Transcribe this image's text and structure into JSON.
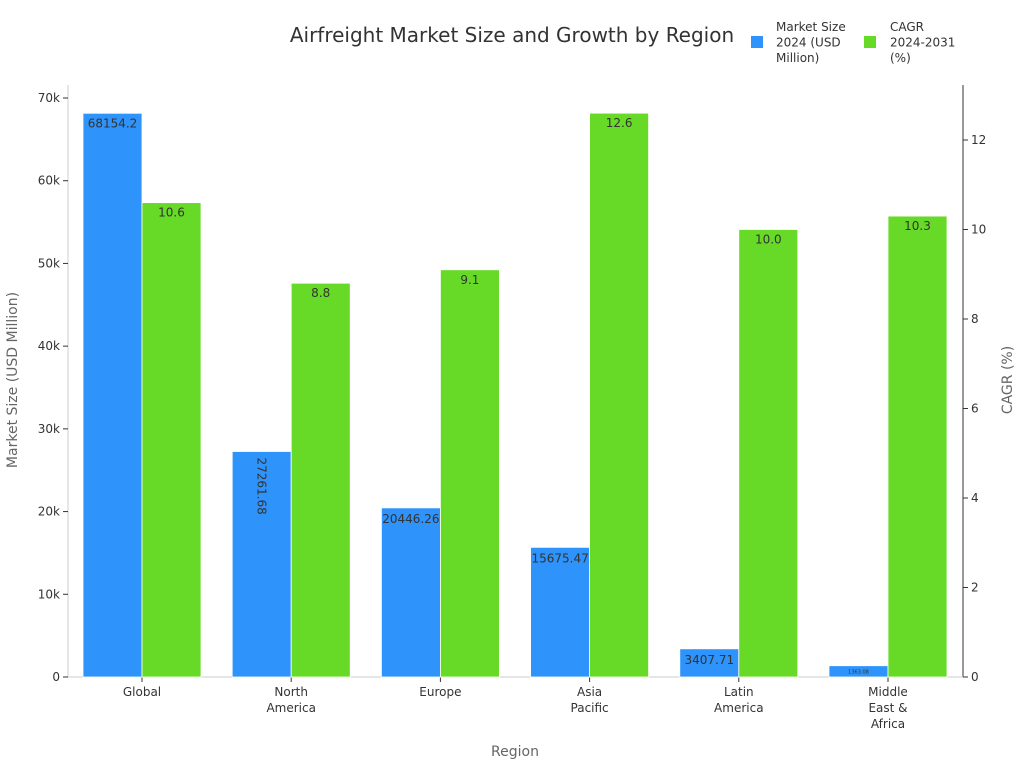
{
  "chart_data": {
    "type": "bar",
    "title": "Airfreight Market Size and Growth by Region",
    "xlabel": "Region",
    "ylabel_left": "Market Size (USD Million)",
    "ylabel_right": "CAGR (%)",
    "categories": [
      [
        "Global"
      ],
      [
        "North",
        "America"
      ],
      [
        "Europe"
      ],
      [
        "Asia",
        "Pacific"
      ],
      [
        "Latin",
        "America"
      ],
      [
        "Middle",
        "East &",
        "Africa"
      ]
    ],
    "series": [
      {
        "name": [
          "Market Size",
          "2024 (USD",
          "Million)"
        ],
        "axis": "left",
        "color": "#2e93fa",
        "values": [
          68154.2,
          27261.68,
          20446.26,
          15675.47,
          3407.71,
          1363.08
        ],
        "labels": [
          "68154.2",
          "27261.68",
          "20446.26",
          "15675.47",
          "3407.71",
          "1363.08"
        ]
      },
      {
        "name": [
          "CAGR",
          "2024-2031",
          "(%)"
        ],
        "axis": "right",
        "color": "#66da26",
        "values": [
          10.6,
          8.8,
          9.1,
          12.6,
          10.0,
          10.3
        ],
        "labels": [
          "10.6",
          "8.8",
          "9.1",
          "12.6",
          "10.0",
          "10.3"
        ]
      }
    ],
    "ylim_left": [
      0,
      72000
    ],
    "yticks_left": [
      {
        "v": 0,
        "t": "0"
      },
      {
        "v": 10000,
        "t": "10k"
      },
      {
        "v": 20000,
        "t": "20k"
      },
      {
        "v": 30000,
        "t": "30k"
      },
      {
        "v": 40000,
        "t": "40k"
      },
      {
        "v": 50000,
        "t": "50k"
      },
      {
        "v": 60000,
        "t": "60k"
      },
      {
        "v": 70000,
        "t": "70k"
      }
    ],
    "ylim_right": [
      0,
      13.23
    ],
    "yticks_right": [
      {
        "v": 0,
        "t": "0"
      },
      {
        "v": 2,
        "t": "2"
      },
      {
        "v": 4,
        "t": "4"
      },
      {
        "v": 6,
        "t": "6"
      },
      {
        "v": 8,
        "t": "8"
      },
      {
        "v": 10,
        "t": "10"
      },
      {
        "v": 12,
        "t": "12"
      }
    ],
    "grid": false,
    "legend": "top-right"
  }
}
